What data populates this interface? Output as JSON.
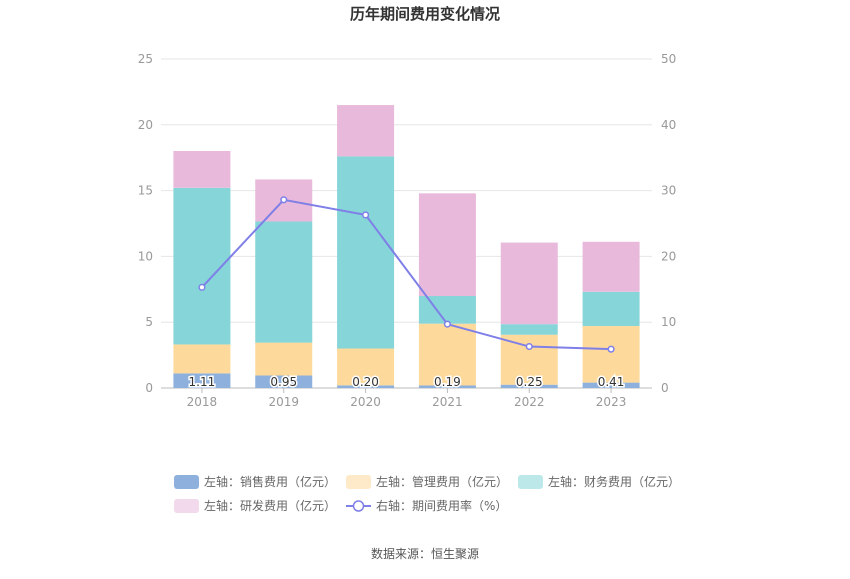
{
  "chart_data": {
    "type": "bar",
    "title": "历年期间费用变化情况",
    "categories": [
      "2018",
      "2019",
      "2020",
      "2021",
      "2022",
      "2023"
    ],
    "stacked": true,
    "left_axis": {
      "ylim": [
        0,
        25
      ],
      "ticks": [
        "0",
        "5",
        "10",
        "15",
        "20",
        "25"
      ]
    },
    "right_axis": {
      "ylim": [
        0,
        50
      ],
      "ticks": [
        "0",
        "10",
        "20",
        "30",
        "40",
        "50"
      ]
    },
    "grid": true,
    "legend_position": "bottom",
    "series": [
      {
        "name": "左轴：销售费用（亿元）",
        "axis": "left",
        "type": "bar",
        "color": "#8eb0dc",
        "values": [
          1.11,
          0.95,
          0.2,
          0.19,
          0.25,
          0.41
        ],
        "labels": [
          "1.11",
          "0.95",
          "0.20",
          "0.19",
          "0.25",
          "0.41"
        ]
      },
      {
        "name": "左轴：管理费用（亿元）",
        "axis": "left",
        "type": "bar",
        "color": "#fdd99b",
        "values": [
          2.2,
          2.5,
          2.8,
          4.7,
          3.8,
          4.3
        ]
      },
      {
        "name": "左轴：财务费用（亿元）",
        "axis": "left",
        "type": "bar",
        "color": "#85d5d9",
        "values": [
          11.9,
          9.2,
          14.6,
          2.1,
          0.8,
          2.6
        ]
      },
      {
        "name": "左轴：研发费用（亿元）",
        "axis": "left",
        "type": "bar",
        "color": "#e8b9da",
        "values": [
          2.8,
          3.2,
          3.9,
          7.8,
          6.2,
          3.8
        ]
      },
      {
        "name": "右轴：期间费用率（%）",
        "axis": "right",
        "type": "line",
        "color": "#7f7fe8",
        "values": [
          15.3,
          28.6,
          26.3,
          9.7,
          6.3,
          5.9
        ]
      }
    ],
    "source": "数据来源：恒生聚源"
  }
}
